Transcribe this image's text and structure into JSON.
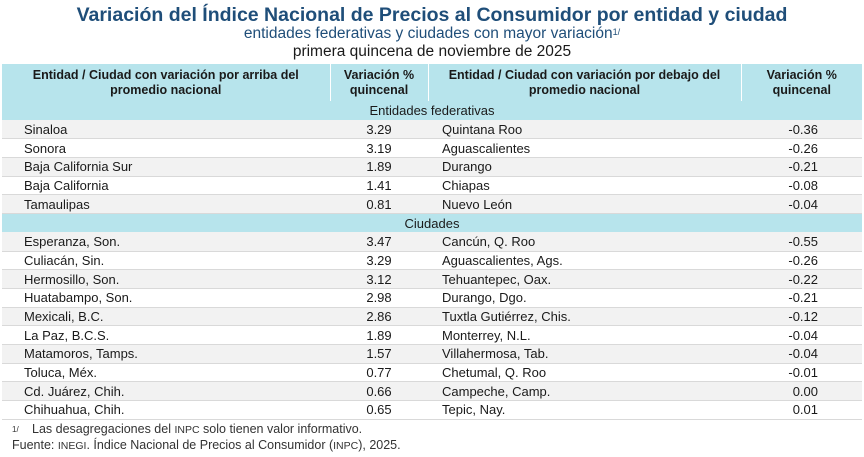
{
  "title": "Variación del Índice Nacional de Precios al Consumidor por entidad y ciudad",
  "subtitle": "entidades federativas y ciudades con mayor variación",
  "subtitle_note_mark": "1/",
  "period": "primera quincena de noviembre de 2025",
  "headers": {
    "col1": "Entidad / Ciudad con variación por arriba del promedio nacional",
    "col2": "Variación % quincenal",
    "col3": "Entidad / Ciudad con variación por debajo del promedio nacional",
    "col4": "Variación % quincenal"
  },
  "sections": [
    {
      "label": "Entidades federativas",
      "rows": [
        {
          "above": "Sinaloa",
          "above_val": "3.29",
          "below": "Quintana Roo",
          "below_val": "-0.36"
        },
        {
          "above": "Sonora",
          "above_val": "3.19",
          "below": "Aguascalientes",
          "below_val": "-0.26"
        },
        {
          "above": "Baja California Sur",
          "above_val": "1.89",
          "below": "Durango",
          "below_val": "-0.21"
        },
        {
          "above": "Baja California",
          "above_val": "1.41",
          "below": "Chiapas",
          "below_val": "-0.08"
        },
        {
          "above": "Tamaulipas",
          "above_val": "0.81",
          "below": "Nuevo León",
          "below_val": "-0.04"
        }
      ]
    },
    {
      "label": "Ciudades",
      "rows": [
        {
          "above": "Esperanza, Son.",
          "above_val": "3.47",
          "below": "Cancún, Q. Roo",
          "below_val": "-0.55"
        },
        {
          "above": "Culiacán, Sin.",
          "above_val": "3.29",
          "below": "Aguascalientes, Ags.",
          "below_val": "-0.26"
        },
        {
          "above": "Hermosillo, Son.",
          "above_val": "3.12",
          "below": "Tehuantepec, Oax.",
          "below_val": "-0.22"
        },
        {
          "above": "Huatabampo, Son.",
          "above_val": "2.98",
          "below": "Durango, Dgo.",
          "below_val": "-0.21"
        },
        {
          "above": "Mexicali, B.C.",
          "above_val": "2.86",
          "below": "Tuxtla Gutiérrez, Chis.",
          "below_val": "-0.12"
        },
        {
          "above": "La Paz, B.C.S.",
          "above_val": "1.89",
          "below": "Monterrey, N.L.",
          "below_val": "-0.04"
        },
        {
          "above": "Matamoros, Tamps.",
          "above_val": "1.57",
          "below": "Villahermosa, Tab.",
          "below_val": "-0.04"
        },
        {
          "above": "Toluca, Méx.",
          "above_val": "0.77",
          "below": "Chetumal, Q. Roo",
          "below_val": "-0.01"
        },
        {
          "above": "Cd. Juárez, Chih.",
          "above_val": "0.66",
          "below": "Campeche, Camp.",
          "below_val": "0.00"
        },
        {
          "above": "Chihuahua, Chih.",
          "above_val": "0.65",
          "below": "Tepic, Nay.",
          "below_val": "0.01"
        }
      ]
    }
  ],
  "footnote": {
    "mark": "1/",
    "text_before": "Las desagregaciones del ",
    "abbr": "INPC",
    "text_after": " solo tienen valor informativo."
  },
  "source": {
    "label": "Fuente: ",
    "org": "INEGI",
    "mid": ". Índice Nacional de Precios al Consumidor (",
    "abbr": "INPC",
    "end": "), 2025."
  }
}
